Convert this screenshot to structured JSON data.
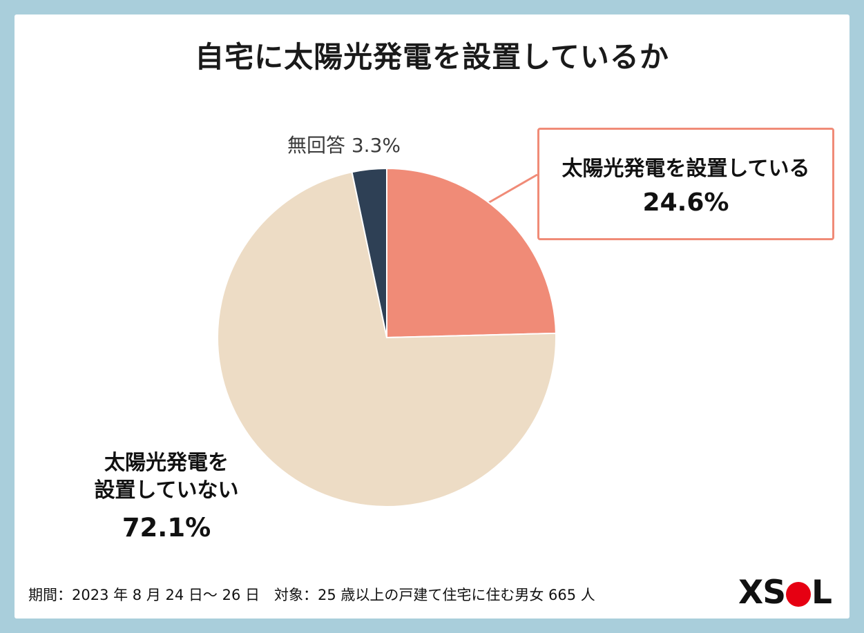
{
  "frame": {
    "border_color": "#a9cedb",
    "background": "#ffffff"
  },
  "title": "自宅に太陽光発電を設置しているか",
  "chart_data": {
    "type": "pie",
    "title": "自宅に太陽光発電を設置しているか",
    "unit": "%",
    "start_angle_deg": 0,
    "direction": "clockwise",
    "slices": [
      {
        "label": "太陽光発電を設置している",
        "value": 24.6,
        "color": "#f08b77"
      },
      {
        "label": "太陽光発電を設置していない",
        "value": 72.1,
        "color": "#eddcc5"
      },
      {
        "label": "無回答",
        "value": 3.3,
        "color": "#2e4055"
      }
    ]
  },
  "labels": {
    "no_answer": "無回答 3.3%",
    "not_installed_line1": "太陽光発電を",
    "not_installed_line2": "設置していない",
    "not_installed_value": "72.1%",
    "callout_label": "太陽光発電を設置している",
    "callout_value": "24.6%"
  },
  "footer": {
    "survey_info": "期間：2023 年 8 月 24 日～ 26 日　対象：25 歳以上の戸建て住宅に住む男女 665 人"
  },
  "logo": {
    "text_before": "XS",
    "text_after": "L",
    "dot_color": "#e60012"
  }
}
